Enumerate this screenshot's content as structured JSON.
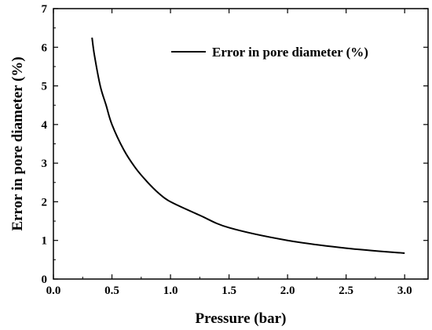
{
  "chart_data": {
    "type": "line",
    "title": "",
    "xlabel": "Pressure (bar)",
    "ylabel": "Error in pore diameter (%)",
    "xlim": [
      0.0,
      3.2
    ],
    "ylim": [
      0,
      7
    ],
    "xticks": [
      0.0,
      0.5,
      1.0,
      1.5,
      2.0,
      2.5,
      3.0
    ],
    "xtick_labels": [
      "0.0",
      "0.5",
      "1.0",
      "1.5",
      "2.0",
      "2.5",
      "3.0"
    ],
    "yticks": [
      0,
      1,
      2,
      3,
      4,
      5,
      6,
      7
    ],
    "ytick_labels": [
      "0",
      "1",
      "2",
      "3",
      "4",
      "5",
      "6",
      "7"
    ],
    "grid": false,
    "legend_position": "top-right",
    "series": [
      {
        "name": "Error in pore diameter (%)",
        "color": "#000000",
        "x": [
          0.33,
          0.35,
          0.4,
          0.45,
          0.5,
          0.6,
          0.7,
          0.8,
          0.9,
          1.0,
          1.25,
          1.5,
          2.0,
          2.5,
          3.0
        ],
        "y": [
          6.25,
          5.8,
          5.0,
          4.5,
          4.0,
          3.35,
          2.88,
          2.52,
          2.22,
          2.0,
          1.65,
          1.33,
          1.0,
          0.8,
          0.67
        ]
      }
    ]
  }
}
